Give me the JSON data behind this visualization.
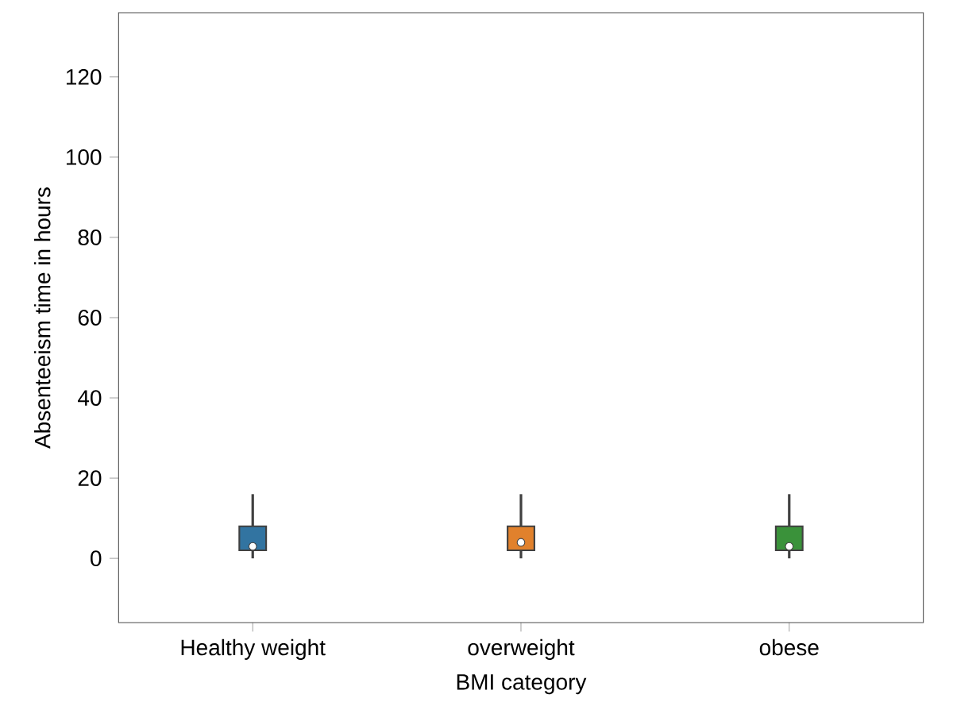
{
  "chart_data": {
    "type": "box",
    "xlabel": "BMI category",
    "ylabel": "Absenteeism time in hours",
    "categories": [
      "Healthy weight",
      "overweight",
      "obese"
    ],
    "colors": [
      "#3274a1",
      "#e1812c",
      "#3a923a"
    ],
    "boxes": [
      {
        "low": 0,
        "q1": 2,
        "median": 3,
        "q3": 8,
        "high": 16
      },
      {
        "low": 0,
        "q1": 2,
        "median": 4,
        "q3": 8,
        "high": 16
      },
      {
        "low": 0,
        "q1": 2,
        "median": 3,
        "q3": 8,
        "high": 16
      }
    ],
    "ylim": [
      -16,
      136
    ],
    "yticks": [
      0,
      20,
      40,
      60,
      80,
      100,
      120
    ]
  }
}
